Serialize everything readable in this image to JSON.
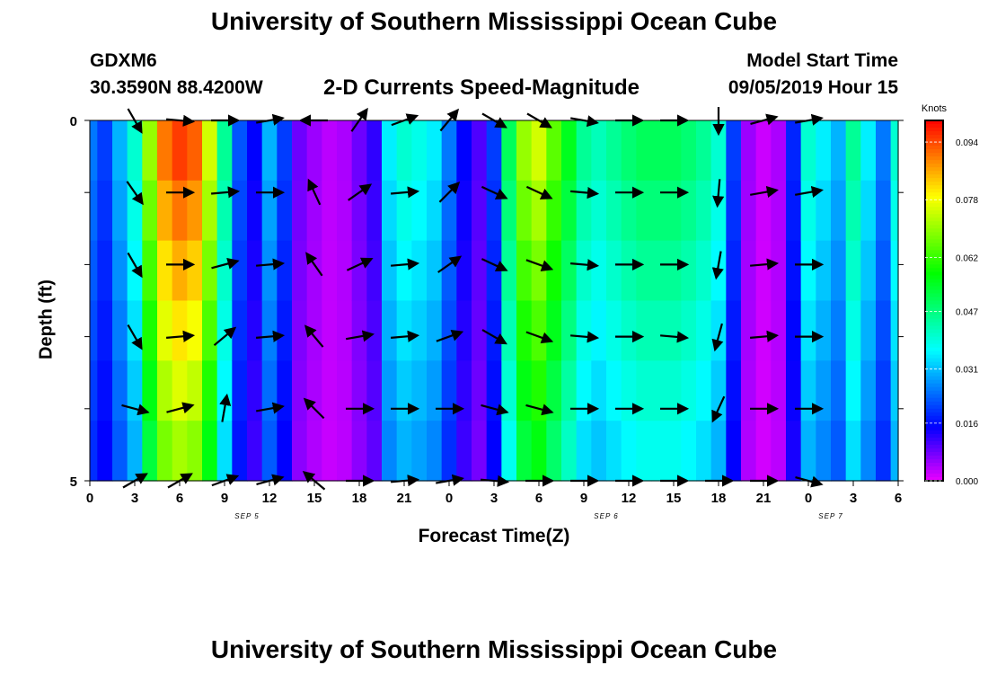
{
  "header": {
    "title": "University of Southern Mississippi Ocean Cube",
    "station": "GDXM6",
    "coords": "30.3590N 88.4200W",
    "subtitle": "2-D Currents Speed-Magnitude",
    "model_start_label": "Model Start Time",
    "model_start_value": "09/05/2019 Hour 15"
  },
  "footer": {
    "title": "University of Southern Mississippi Ocean Cube"
  },
  "chart_data": {
    "type": "heatmap",
    "title": "2-D Currents Speed-Magnitude",
    "xlabel": "Forecast Time(Z)",
    "ylabel": "Depth (ft)",
    "x_tick_labels": [
      "0",
      "3",
      "6",
      "9",
      "12",
      "15",
      "18",
      "21",
      "0",
      "3",
      "6",
      "9",
      "12",
      "15",
      "18",
      "21",
      "0",
      "3",
      "6"
    ],
    "date_labels": [
      {
        "text": "SEP 5",
        "tick_index": 4
      },
      {
        "text": "SEP 6",
        "tick_index": 12
      },
      {
        "text": "SEP 7",
        "tick_index": 17
      }
    ],
    "y_tick_labels": [
      "0",
      "5"
    ],
    "ylim": [
      0,
      5
    ],
    "x_hours": [
      0,
      54
    ],
    "colorbar": {
      "unit": "Knots",
      "min": 0.0,
      "max": 0.1,
      "tick_values": [
        0.094,
        0.078,
        0.062,
        0.047,
        0.031,
        0.016,
        0.0
      ],
      "tick_labels": [
        "0.094",
        "0.078",
        "0.062",
        "0.047",
        "0.031",
        "0.016",
        "0.000"
      ]
    },
    "speed_hours": [
      0,
      1,
      2,
      3,
      4,
      5,
      6,
      7,
      8,
      9,
      10,
      11,
      12,
      13,
      14,
      15,
      16,
      17,
      18,
      19,
      20,
      21,
      22,
      23,
      24,
      25,
      26,
      27,
      28,
      29,
      30,
      31,
      32,
      33,
      34,
      35,
      36,
      37,
      38,
      39,
      40,
      41,
      42,
      43,
      44,
      45,
      46,
      47,
      48,
      49,
      50,
      51,
      52,
      53,
      54
    ],
    "speed_knots": [
      0.025,
      0.02,
      0.03,
      0.04,
      0.07,
      0.09,
      0.095,
      0.092,
      0.075,
      0.045,
      0.022,
      0.015,
      0.03,
      0.02,
      0.008,
      0.005,
      0.003,
      0.004,
      0.008,
      0.012,
      0.035,
      0.04,
      0.038,
      0.035,
      0.025,
      0.015,
      0.01,
      0.02,
      0.05,
      0.07,
      0.075,
      0.065,
      0.055,
      0.045,
      0.042,
      0.045,
      0.048,
      0.05,
      0.05,
      0.05,
      0.048,
      0.045,
      0.04,
      0.02,
      0.005,
      0.002,
      0.004,
      0.018,
      0.04,
      0.035,
      0.03,
      0.045,
      0.035,
      0.025,
      0.04
    ],
    "depth_speed_factors": [
      1.0,
      0.95,
      0.9,
      0.85,
      0.8,
      0.75
    ],
    "vector_depths": [
      0,
      1,
      2,
      3,
      4,
      5
    ],
    "vectors": [
      {
        "hour": 3,
        "angles_deg": [
          -60,
          -55,
          -60,
          -60,
          -15,
          30
        ]
      },
      {
        "hour": 6,
        "angles_deg": [
          -5,
          0,
          0,
          5,
          15,
          30
        ]
      },
      {
        "hour": 9,
        "angles_deg": [
          0,
          5,
          15,
          40,
          80,
          20
        ]
      },
      {
        "hour": 12,
        "angles_deg": [
          10,
          0,
          5,
          5,
          10,
          15
        ]
      },
      {
        "hour": 15,
        "angles_deg": [
          180,
          115,
          125,
          130,
          135,
          140
        ]
      },
      {
        "hour": 18,
        "angles_deg": [
          55,
          35,
          25,
          10,
          0,
          0
        ]
      },
      {
        "hour": 21,
        "angles_deg": [
          20,
          5,
          5,
          5,
          0,
          5
        ]
      },
      {
        "hour": 24,
        "angles_deg": [
          50,
          45,
          35,
          20,
          0,
          10
        ]
      },
      {
        "hour": 27,
        "angles_deg": [
          -30,
          -25,
          -25,
          -30,
          -15,
          -5
        ]
      },
      {
        "hour": 30,
        "angles_deg": [
          -30,
          -25,
          -20,
          -20,
          -15,
          0
        ]
      },
      {
        "hour": 33,
        "angles_deg": [
          -10,
          -5,
          -5,
          -5,
          0,
          0
        ]
      },
      {
        "hour": 36,
        "angles_deg": [
          0,
          0,
          0,
          0,
          0,
          0
        ]
      },
      {
        "hour": 39,
        "angles_deg": [
          0,
          0,
          0,
          -5,
          0,
          0
        ]
      },
      {
        "hour": 42,
        "angles_deg": [
          -90,
          -95,
          -100,
          -105,
          -115,
          0
        ]
      },
      {
        "hour": 45,
        "angles_deg": [
          15,
          10,
          5,
          5,
          0,
          0
        ]
      },
      {
        "hour": 48,
        "angles_deg": [
          10,
          10,
          0,
          0,
          0,
          -15
        ]
      }
    ]
  }
}
